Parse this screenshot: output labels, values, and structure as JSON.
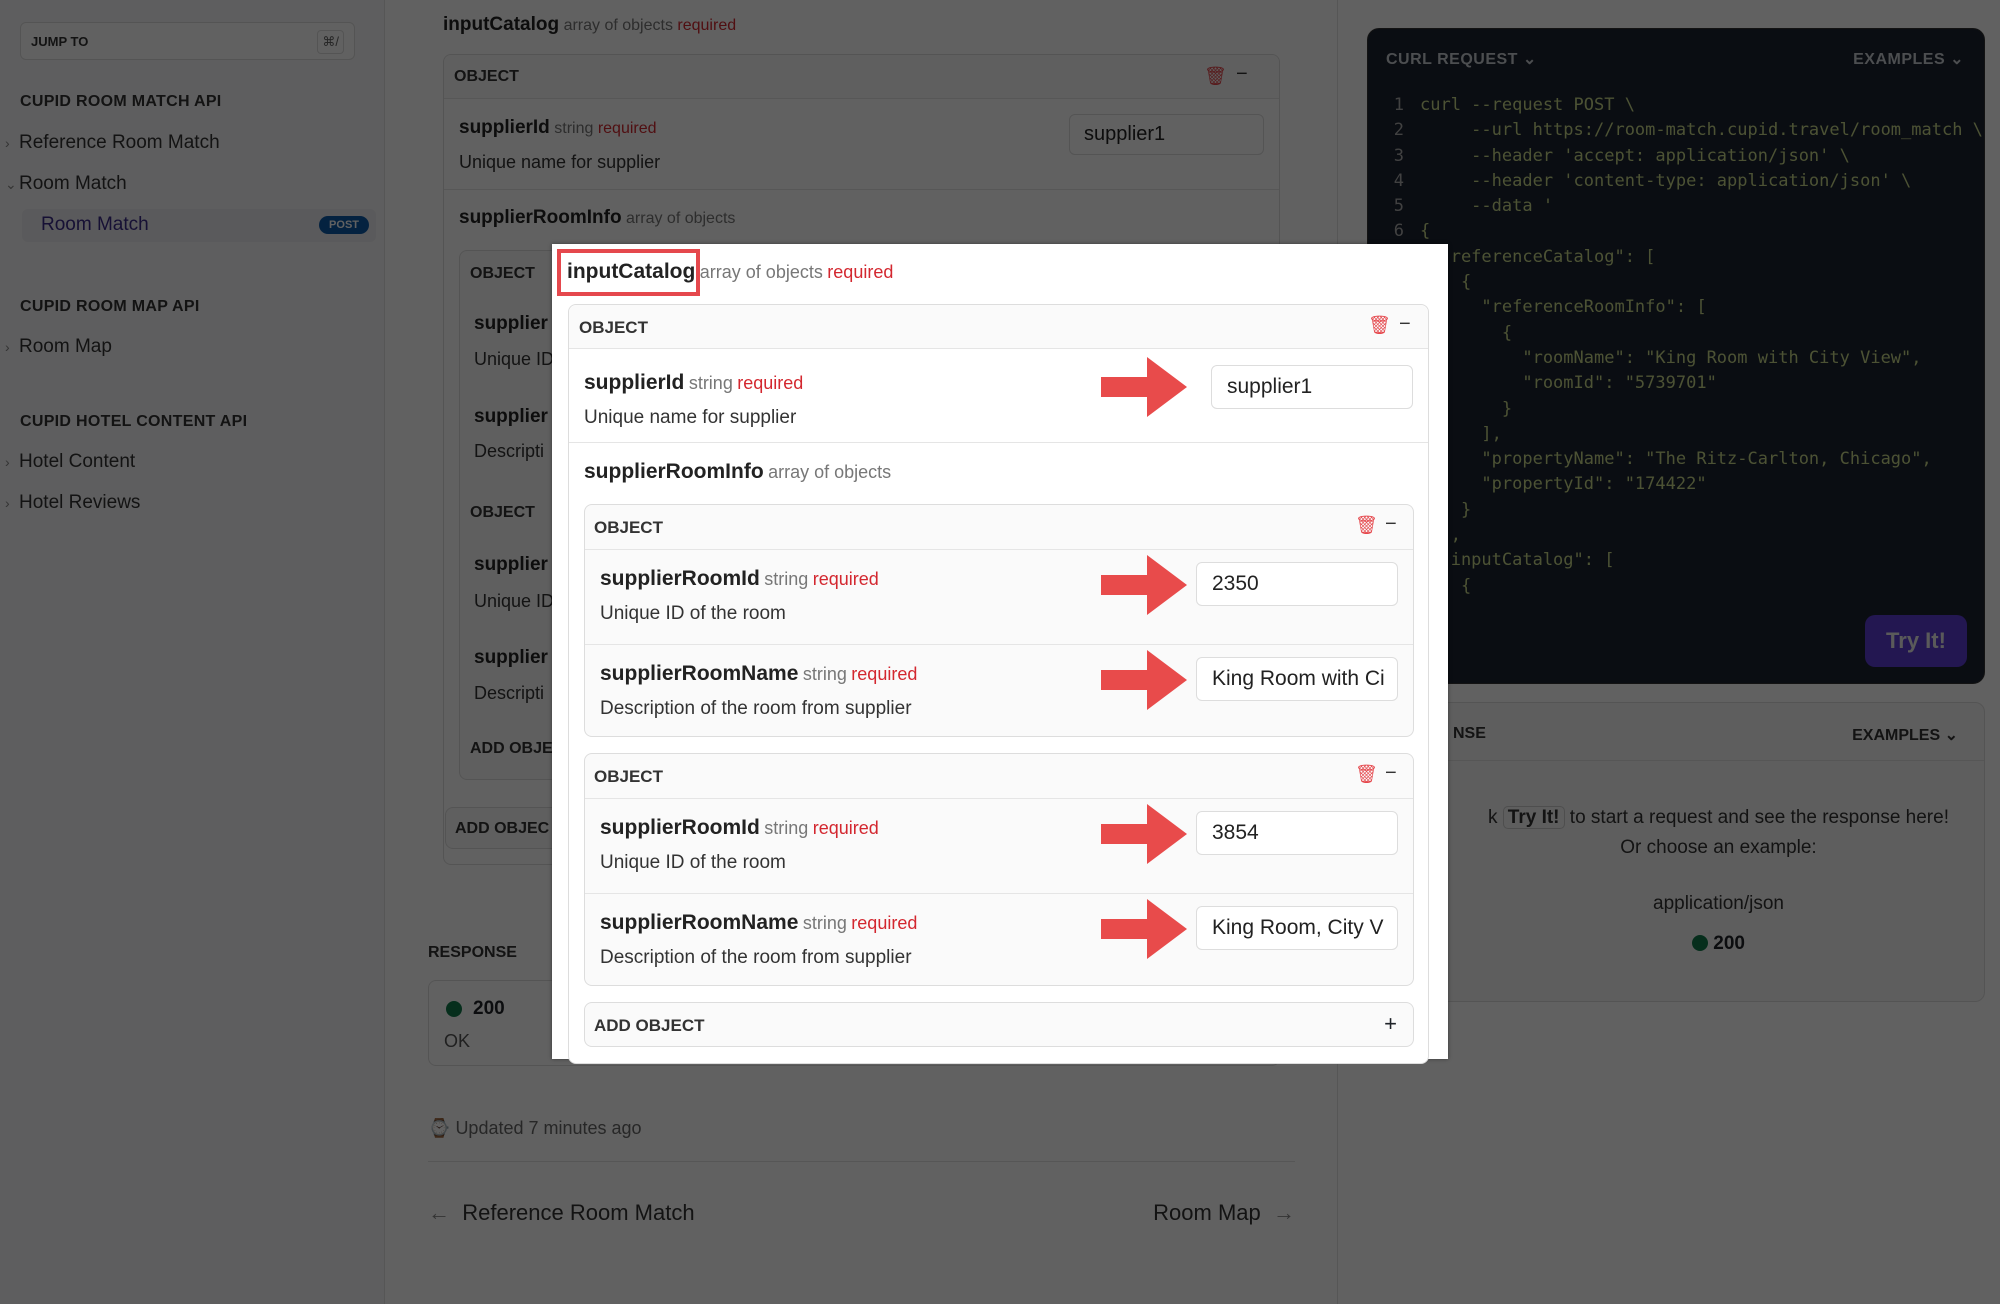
{
  "sidebar": {
    "jump_to": {
      "label": "JUMP TO",
      "shortcut": "⌘/"
    },
    "sections": [
      {
        "title": "CUPID ROOM MATCH API",
        "items": [
          {
            "label": "Reference Room Match",
            "expanded": false
          },
          {
            "label": "Room Match",
            "expanded": true,
            "children": [
              {
                "label": "Room Match",
                "method": "POST",
                "active": true
              }
            ]
          }
        ]
      },
      {
        "title": "CUPID ROOM MAP API",
        "items": [
          {
            "label": "Room Map",
            "expanded": false
          }
        ]
      },
      {
        "title": "CUPID HOTEL CONTENT API",
        "items": [
          {
            "label": "Hotel Content",
            "expanded": false
          },
          {
            "label": "Hotel Reviews",
            "expanded": false
          }
        ]
      }
    ]
  },
  "main": {
    "param": {
      "name": "inputCatalog",
      "type": "array of objects",
      "required": "required"
    },
    "object_label": "OBJECT",
    "supplierId": {
      "name": "supplierId",
      "type": "string",
      "required": "required",
      "description": "Unique name for supplier",
      "value": "supplier1"
    },
    "supplierRoomInfo": {
      "name": "supplierRoomInfo",
      "type": "array of objects"
    },
    "bg_fields": [
      {
        "name": "supplier",
        "description": "Unique ID"
      },
      {
        "name": "supplier",
        "description": "Descripti"
      },
      {
        "name": "supplier",
        "description": "Unique ID"
      },
      {
        "name": "supplier",
        "description": "Descripti"
      }
    ],
    "add_object_inner_partial": "ADD OBJE",
    "add_object_outer_partial": "ADD OBJEC",
    "response": {
      "title": "RESPONSE",
      "code": "200",
      "status": "OK",
      "status_color": "#0f7a4a"
    },
    "updated": "Updated 7 minutes ago",
    "prev": "Reference Room Match",
    "next": "Room Map"
  },
  "code_panel": {
    "title": "CURL REQUEST",
    "examples": "EXAMPLES",
    "lines": [
      "curl --request POST \\",
      "     --url https://room-match.cupid.travel/room_match \\",
      "     --header 'accept: application/json' \\",
      "     --header 'content-type: application/json' \\",
      "     --data '",
      "{",
      "  \"referenceCatalog\": [",
      "    {",
      "      \"referenceRoomInfo\": [",
      "        {",
      "          \"roomName\": \"King Room with City View\",",
      "          \"roomId\": \"5739701\"",
      "        }",
      "      ],",
      "      \"propertyName\": \"The Ritz-Carlton, Chicago\",",
      "      \"propertyId\": \"174422\"",
      "    }",
      "  ],",
      "  \"inputCatalog\": [",
      "    {"
    ],
    "try_button": "Try It!",
    "accent": "#4b2fc4"
  },
  "response_panel": {
    "title_partial": "NSE",
    "examples": "EXAMPLES",
    "hint_prefix": "k",
    "hint_button": "Try It!",
    "hint_suffix": "to start a request and see the response here!",
    "hint_line2": "Or choose an example:",
    "content_type": "application/json",
    "code": "200"
  },
  "popup": {
    "param": {
      "name": "inputCatalog",
      "type": "array of objects",
      "required": "required"
    },
    "object_label": "OBJECT",
    "supplierId": {
      "name": "supplierId",
      "type": "string",
      "required": "required",
      "description": "Unique name for supplier",
      "value": "supplier1"
    },
    "supplierRoomInfo": {
      "name": "supplierRoomInfo",
      "type": "array of objects"
    },
    "objects": [
      {
        "fields": [
          {
            "name": "supplierRoomId",
            "type": "string",
            "required": "required",
            "description": "Unique ID of the room",
            "value": "2350"
          },
          {
            "name": "supplierRoomName",
            "type": "string",
            "required": "required",
            "description": "Description of the room from supplier",
            "value": "King Room with Ci"
          }
        ]
      },
      {
        "fields": [
          {
            "name": "supplierRoomId",
            "type": "string",
            "required": "required",
            "description": "Unique ID of the room",
            "value": "3854"
          },
          {
            "name": "supplierRoomName",
            "type": "string",
            "required": "required",
            "description": "Description of the room from supplier",
            "value": "King Room, City V"
          }
        ]
      }
    ],
    "add_object": "ADD OBJECT",
    "highlight_color": "#e5484d",
    "arrow_color": "#e84b4b"
  }
}
